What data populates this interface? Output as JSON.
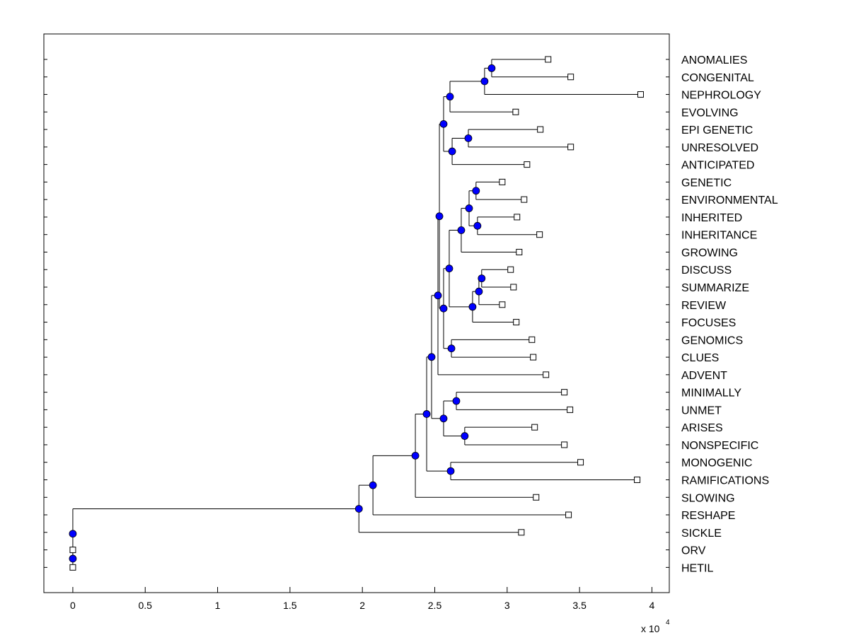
{
  "chart_data": {
    "type": "dendrogram",
    "title": "",
    "xlabel": "",
    "ylabel": "",
    "x_multiplier_label": "x 10",
    "x_multiplier_exponent": "4",
    "xlim": [
      -0.2,
      4.12
    ],
    "x_ticks": [
      0,
      0.5,
      1,
      1.5,
      2,
      2.5,
      3,
      3.5,
      4
    ],
    "x_tick_labels": [
      "0",
      "0.5",
      "1",
      "1.5",
      "2",
      "2.5",
      "3",
      "3.5",
      "4"
    ],
    "grid": false,
    "colors": {
      "internal_node": "#0000ff",
      "leaf_node": "#ffffff",
      "line": "#000000"
    },
    "tree": {
      "height": 0,
      "children": [
        {
          "height": 1.976,
          "children": [
            {
              "height": 2.073,
              "children": [
                {
                  "height": 2.366,
                  "children": [
                    {
                      "height": 2.444,
                      "children": [
                        {
                          "height": 2.478,
                          "children": [
                            {
                              "height": 2.522,
                              "children": [
                                {
                                  "height": 2.532,
                                  "children": [
                                    {
                                      "height": 2.561,
                                      "children": [
                                        {
                                          "height": 2.605,
                                          "children": [
                                            {
                                              "height": 2.844,
                                              "children": [
                                                {
                                                  "height": 2.893,
                                                  "children": [
                                                    {
                                                      "label": "ANOMALIES",
                                                      "height": 3.283
                                                    },
                                                    {
                                                      "label": "CONGENITAL",
                                                      "height": 3.439
                                                    }
                                                  ]
                                                },
                                                {
                                                  "label": "NEPHROLOGY",
                                                  "height": 3.922
                                                }
                                              ]
                                            },
                                            {
                                              "label": "EVOLVING",
                                              "height": 3.059
                                            }
                                          ]
                                        },
                                        {
                                          "height": 2.62,
                                          "children": [
                                            {
                                              "height": 2.732,
                                              "children": [
                                                {
                                                  "label": "EPI GENETIC",
                                                  "height": 3.229
                                                },
                                                {
                                                  "label": "UNRESOLVED",
                                                  "height": 3.439
                                                }
                                              ]
                                            },
                                            {
                                              "label": "ANTICIPATED",
                                              "height": 3.137
                                            }
                                          ]
                                        }
                                      ]
                                    },
                                    {
                                      "height": 2.561,
                                      "children": [
                                        {
                                          "height": 2.6,
                                          "children": [
                                            {
                                              "height": 2.683,
                                              "children": [
                                                {
                                                  "height": 2.737,
                                                  "children": [
                                                    {
                                                      "height": 2.785,
                                                      "children": [
                                                        {
                                                          "label": "GENETIC",
                                                          "height": 2.966
                                                        },
                                                        {
                                                          "label": "ENVIRONMENTAL",
                                                          "height": 3.117
                                                        }
                                                      ]
                                                    },
                                                    {
                                                      "height": 2.795,
                                                      "children": [
                                                        {
                                                          "label": "INHERITED",
                                                          "height": 3.068
                                                        },
                                                        {
                                                          "label": "INHERITANCE",
                                                          "height": 3.224
                                                        }
                                                      ]
                                                    }
                                                  ]
                                                },
                                                {
                                                  "label": "GROWING",
                                                  "height": 3.083
                                                }
                                              ]
                                            },
                                            {
                                              "height": 2.761,
                                              "children": [
                                                {
                                                  "height": 2.805,
                                                  "children": [
                                                    {
                                                      "height": 2.824,
                                                      "children": [
                                                        {
                                                          "label": "DISCUSS",
                                                          "height": 3.024
                                                        },
                                                        {
                                                          "label": "SUMMARIZE",
                                                          "height": 3.044
                                                        }
                                                      ]
                                                    },
                                                    {
                                                      "label": "REVIEW",
                                                      "height": 2.966
                                                    }
                                                  ]
                                                },
                                                {
                                                  "label": "FOCUSES",
                                                  "height": 3.063
                                                }
                                              ]
                                            }
                                          ]
                                        },
                                        {
                                          "height": 2.615,
                                          "children": [
                                            {
                                              "label": "GENOMICS",
                                              "height": 3.171
                                            },
                                            {
                                              "label": "CLUES",
                                              "height": 3.18
                                            }
                                          ]
                                        }
                                      ]
                                    }
                                  ]
                                },
                                {
                                  "label": "ADVENT",
                                  "height": 3.268
                                }
                              ]
                            },
                            {
                              "height": 2.561,
                              "children": [
                                {
                                  "height": 2.649,
                                  "children": [
                                    {
                                      "label": "MINIMALLY",
                                      "height": 3.395
                                    },
                                    {
                                      "label": "UNMET",
                                      "height": 3.434
                                    }
                                  ]
                                },
                                {
                                  "height": 2.707,
                                  "children": [
                                    {
                                      "label": "ARISES",
                                      "height": 3.19
                                    },
                                    {
                                      "label": "NONSPECIFIC",
                                      "height": 3.395
                                    }
                                  ]
                                }
                              ]
                            }
                          ]
                        },
                        {
                          "height": 2.61,
                          "children": [
                            {
                              "label": "MONOGENIC",
                              "height": 3.507
                            },
                            {
                              "label": "RAMIFICATIONS",
                              "height": 3.898
                            }
                          ]
                        }
                      ]
                    },
                    {
                      "label": "SLOWING",
                      "height": 3.2
                    }
                  ]
                },
                {
                  "label": "RESHAPE",
                  "height": 3.424
                }
              ]
            },
            {
              "label": "SICKLE",
              "height": 3.098
            }
          ]
        },
        {
          "height": 0,
          "children": [
            {
              "label": "ORV",
              "height": 0
            },
            {
              "label": "HETIL",
              "height": 0
            }
          ]
        }
      ]
    }
  }
}
